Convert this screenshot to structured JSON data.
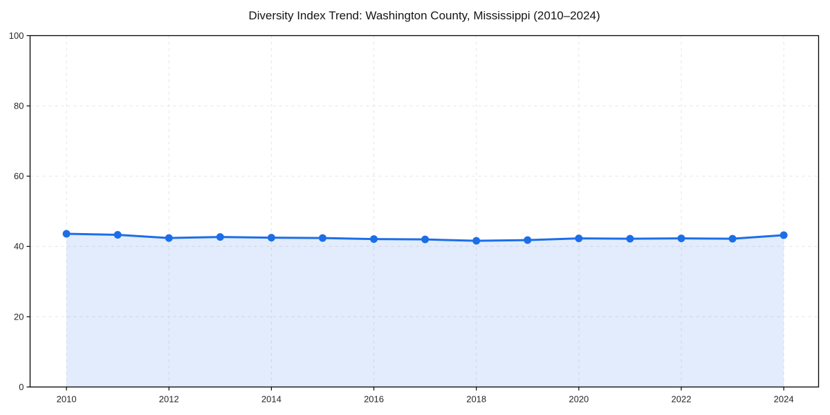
{
  "chart_data": {
    "type": "line",
    "title": "Diversity Index Trend: Washington County, Mississippi (2010–2024)",
    "xlabel": "",
    "ylabel": "",
    "x": [
      2010,
      2011,
      2012,
      2013,
      2014,
      2015,
      2016,
      2017,
      2018,
      2019,
      2020,
      2021,
      2022,
      2023,
      2024
    ],
    "series": [
      {
        "name": "Diversity Index",
        "values": [
          43.6,
          43.3,
          42.4,
          42.7,
          42.5,
          42.4,
          42.1,
          42.0,
          41.6,
          41.8,
          42.3,
          42.2,
          42.3,
          42.2,
          43.2
        ]
      }
    ],
    "markers": true,
    "area_fill": true,
    "xticks": [
      2010,
      2012,
      2014,
      2016,
      2018,
      2020,
      2022,
      2024
    ],
    "yticks": [
      0,
      20,
      40,
      60,
      80,
      100
    ],
    "xlim": [
      2009.29,
      2024.68
    ],
    "ylim": [
      0,
      100
    ],
    "grid": "dashed, horizontal and vertical",
    "legend": "none",
    "colors": {
      "line": "#1c6ee8",
      "marker": "#1c6ee8",
      "fill": "#1c6ee8",
      "fill_opacity": 0.13,
      "grid": "#e4e4e4",
      "spine": "#000000",
      "tick_label": "#262626",
      "title": "#141414",
      "background": "#ffffff"
    }
  }
}
